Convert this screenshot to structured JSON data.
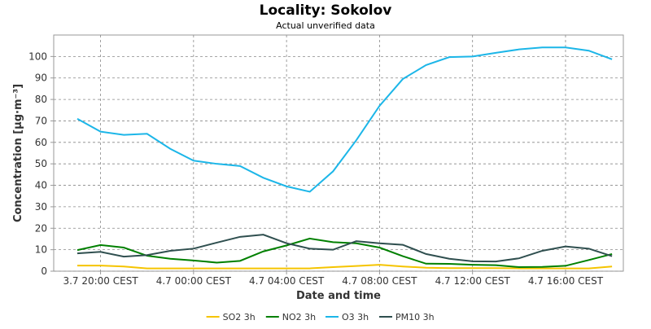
{
  "chart_data": {
    "type": "line",
    "title": "Locality: Sokolov",
    "subtitle": "Actual unverified data",
    "x_label": "Date and time",
    "y_label": "Concentration [µg·m⁻³]",
    "categories": [
      null,
      "3.7 20:00 CEST",
      null,
      null,
      null,
      "4.7 00:00 CEST",
      null,
      null,
      null,
      "4.7 04:00 CEST",
      null,
      null,
      null,
      "4.7 08:00 CEST",
      null,
      null,
      null,
      "4.7 12:00 CEST",
      null,
      null,
      null,
      "4.7 16:00 CEST",
      null,
      null
    ],
    "series": [
      {
        "name": "SO2 3h",
        "color": "#f5c400",
        "values": [
          2.6,
          2.6,
          2.2,
          1.3,
          1.3,
          1.3,
          1.3,
          1.3,
          1.3,
          1.3,
          1.3,
          1.9,
          2.4,
          3,
          2.2,
          1.6,
          1.4,
          1.4,
          1.4,
          1.3,
          1.3,
          1.3,
          1.3,
          2.2
        ]
      },
      {
        "name": "NO2 3h",
        "color": "#008000",
        "values": [
          9.8,
          12.2,
          11,
          7.2,
          5.8,
          5,
          4,
          4.8,
          9.2,
          12,
          15.2,
          13.5,
          13,
          11,
          7,
          3.5,
          3.4,
          3,
          2.8,
          1.9,
          2,
          2.5,
          5.2,
          8
        ]
      },
      {
        "name": "O3 3h",
        "color": "#1cb6e8",
        "values": [
          71,
          65,
          63.5,
          64,
          57,
          51.5,
          50,
          49,
          43.5,
          39.5,
          37,
          46.5,
          61,
          77,
          89.5,
          96,
          99.7,
          100,
          101.7,
          103.3,
          104.2,
          104.2,
          102.7,
          98.7
        ]
      },
      {
        "name": "PM10 3h",
        "color": "#2f4f4f",
        "values": [
          8.3,
          9,
          6.8,
          7.5,
          9.5,
          10.5,
          13.3,
          16,
          17,
          13,
          10.5,
          10,
          14,
          13,
          12.3,
          8,
          5.8,
          4.6,
          4.5,
          6,
          9.5,
          11.5,
          10.5,
          7
        ]
      }
    ],
    "ylim": [
      0,
      110
    ],
    "yticks": [
      0,
      10,
      20,
      30,
      40,
      50,
      60,
      70,
      80,
      90,
      100
    ],
    "grid": true,
    "legend": "bottom"
  }
}
